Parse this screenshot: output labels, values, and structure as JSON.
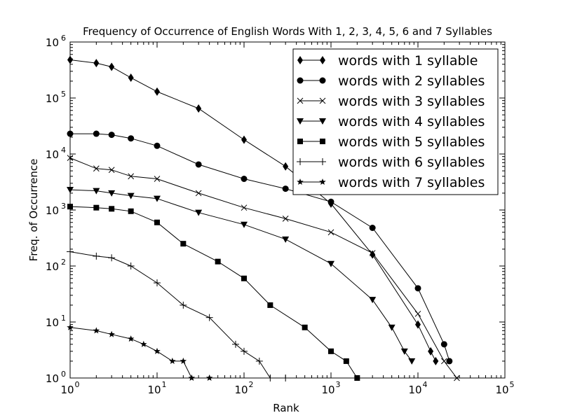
{
  "chart_data": {
    "type": "line",
    "title": "Frequency of Occurrence of English Words With 1, 2, 3, 4, 5, 6 and 7 Syllables",
    "xlabel": "Rank",
    "ylabel": "Freq. of Occurrence",
    "xscale": "log",
    "yscale": "log",
    "xlim": [
      1,
      100000
    ],
    "ylim": [
      1,
      1000000
    ],
    "x_ticks": [
      {
        "base": "10",
        "exp": "0",
        "value": 1
      },
      {
        "base": "10",
        "exp": "1",
        "value": 10
      },
      {
        "base": "10",
        "exp": "2",
        "value": 100
      },
      {
        "base": "10",
        "exp": "3",
        "value": 1000
      },
      {
        "base": "10",
        "exp": "4",
        "value": 10000
      },
      {
        "base": "10",
        "exp": "5",
        "value": 100000
      }
    ],
    "y_ticks": [
      {
        "base": "10",
        "exp": "0",
        "value": 1
      },
      {
        "base": "10",
        "exp": "1",
        "value": 10
      },
      {
        "base": "10",
        "exp": "2",
        "value": 100
      },
      {
        "base": "10",
        "exp": "3",
        "value": 1000
      },
      {
        "base": "10",
        "exp": "4",
        "value": 10000
      },
      {
        "base": "10",
        "exp": "5",
        "value": 100000
      },
      {
        "base": "10",
        "exp": "6",
        "value": 1000000
      }
    ],
    "grid": false,
    "legend_position": "top-right",
    "series": [
      {
        "name": "words with 1 syllable",
        "marker": "diamond",
        "x": [
          1,
          2,
          3,
          5,
          10,
          30,
          100,
          300,
          1000,
          3000,
          10000,
          14000,
          16000
        ],
        "y": [
          480000,
          420000,
          360000,
          230000,
          130000,
          65000,
          18000,
          6000,
          1300,
          160,
          9,
          3,
          2
        ]
      },
      {
        "name": "words with 2 syllables",
        "marker": "circle",
        "x": [
          1,
          2,
          3,
          5,
          10,
          30,
          100,
          300,
          1000,
          3000,
          10000,
          20000,
          23000
        ],
        "y": [
          23000,
          23000,
          22000,
          19000,
          14000,
          6500,
          3600,
          2400,
          1400,
          480,
          40,
          4,
          2
        ]
      },
      {
        "name": "words with 3 syllables",
        "marker": "x",
        "x": [
          1,
          2,
          3,
          5,
          10,
          30,
          100,
          300,
          1000,
          3000,
          10000,
          20000,
          28000
        ],
        "y": [
          8500,
          5500,
          5200,
          4000,
          3600,
          2000,
          1100,
          700,
          400,
          170,
          14,
          2,
          1
        ]
      },
      {
        "name": "words with 4 syllables",
        "marker": "triangle-down",
        "x": [
          1,
          2,
          3,
          5,
          10,
          30,
          100,
          300,
          1000,
          3000,
          5000,
          7000,
          8500
        ],
        "y": [
          2300,
          2200,
          2000,
          1800,
          1600,
          900,
          550,
          300,
          110,
          25,
          8,
          3,
          2
        ]
      },
      {
        "name": "words with 5 syllables",
        "marker": "square",
        "x": [
          1,
          2,
          3,
          5,
          10,
          20,
          50,
          100,
          200,
          500,
          1000,
          1500,
          2000
        ],
        "y": [
          1150,
          1100,
          1050,
          950,
          600,
          250,
          120,
          60,
          20,
          8,
          3,
          2,
          1
        ]
      },
      {
        "name": "words with 6 syllables",
        "marker": "plus",
        "x": [
          1,
          2,
          3,
          5,
          10,
          20,
          40,
          80,
          100,
          150,
          200,
          300
        ],
        "y": [
          180,
          150,
          140,
          100,
          50,
          20,
          12,
          4,
          3,
          2,
          1,
          1
        ]
      },
      {
        "name": "words with 7 syllables",
        "marker": "star",
        "x": [
          1,
          2,
          3,
          5,
          7,
          10,
          15,
          20,
          25,
          40
        ],
        "y": [
          8,
          7,
          6,
          5,
          4,
          3,
          2,
          2,
          1,
          1
        ]
      }
    ]
  }
}
